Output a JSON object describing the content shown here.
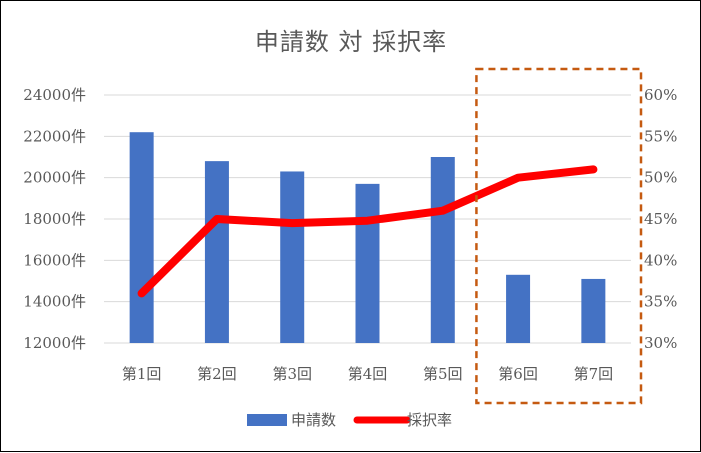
{
  "chart_data": {
    "type": "bar",
    "title": "申請数 対 採択率",
    "categories": [
      "第1回",
      "第2回",
      "第3回",
      "第4回",
      "第5回",
      "第6回",
      "第7回"
    ],
    "series": [
      {
        "name": "申請数",
        "type": "bar",
        "axis": "left",
        "color": "#4472C4",
        "values": [
          22200,
          20800,
          20300,
          19700,
          21000,
          15300,
          15100
        ]
      },
      {
        "name": "採択率",
        "type": "line",
        "axis": "right",
        "color": "#FF0000",
        "values": [
          36,
          45,
          44.5,
          44.8,
          46,
          50,
          51
        ]
      }
    ],
    "y_left": {
      "min": 12000,
      "max": 24000,
      "step": 2000,
      "ticks": [
        "12000件",
        "14000件",
        "16000件",
        "18000件",
        "20000件",
        "22000件",
        "24000件"
      ]
    },
    "y_right": {
      "min": 30,
      "max": 60,
      "step": 5,
      "ticks": [
        "30%",
        "35%",
        "40%",
        "45%",
        "50%",
        "55%",
        "60%"
      ]
    },
    "grid": true,
    "legend": "bottom",
    "highlight": {
      "from_category": "第6回",
      "to_category": "第7回",
      "color": "#C55A11",
      "style": "dashed"
    },
    "gridline_color": "#D9D9D9"
  }
}
